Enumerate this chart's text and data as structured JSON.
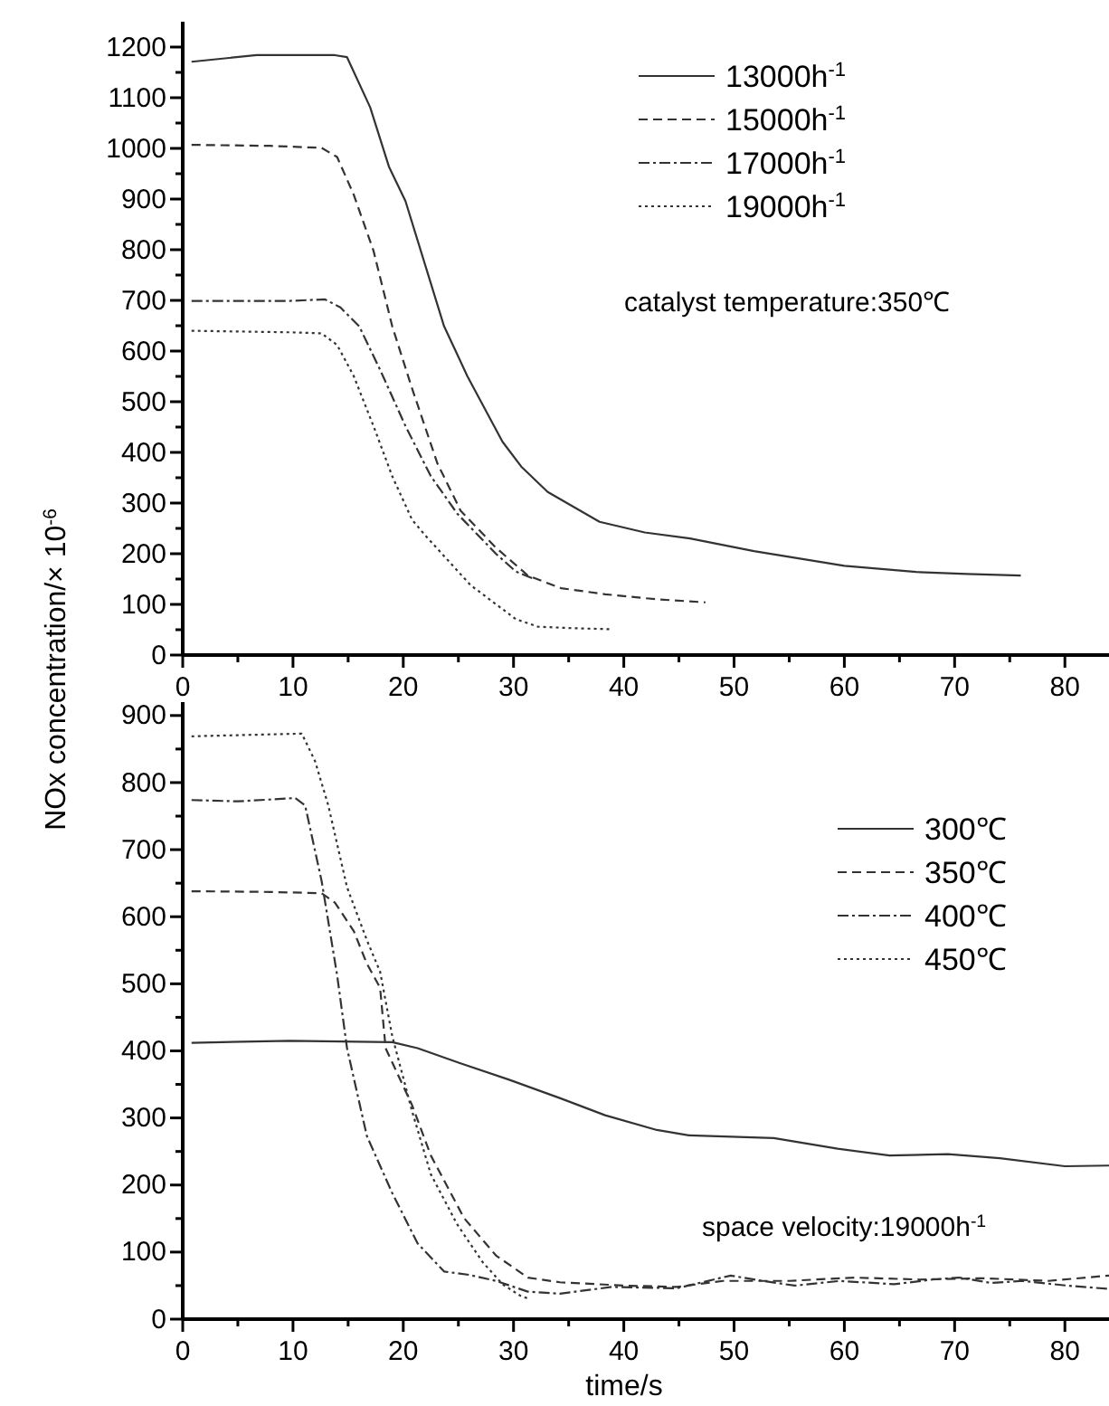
{
  "chart_data": [
    {
      "type": "line",
      "ylabel": "NOx concentration/× 10$^{-6}$",
      "legend": "top right",
      "grid": false,
      "marker": "none",
      "xlim": [
        0,
        84
      ],
      "xticks": [
        0,
        {
          "value": 5,
          "label": null
        },
        10,
        {
          "value": 15,
          "label": null
        },
        20,
        {
          "value": 25,
          "label": null
        },
        30,
        {
          "value": 35,
          "label": null
        },
        40,
        {
          "value": 45,
          "label": null
        },
        50,
        {
          "value": 55,
          "label": null
        },
        60,
        {
          "value": 65,
          "label": null
        },
        70,
        {
          "value": 75,
          "label": null
        },
        80
      ],
      "ylim": [
        0,
        1250
      ],
      "yticks": [
        0,
        {
          "value": 50,
          "label": null
        },
        100,
        {
          "value": 150,
          "label": null
        },
        200,
        {
          "value": 250,
          "label": null
        },
        300,
        {
          "value": 350,
          "label": null
        },
        400,
        {
          "value": 450,
          "label": null
        },
        500,
        {
          "value": 550,
          "label": null
        },
        600,
        {
          "value": 650,
          "label": null
        },
        700,
        {
          "value": 750,
          "label": null
        },
        800,
        {
          "value": 850,
          "label": null
        },
        900,
        {
          "value": 950,
          "label": null
        },
        1000,
        {
          "value": 1050,
          "label": null
        },
        1100,
        {
          "value": 1150,
          "label": null
        },
        1200
      ],
      "annotations": [
        "catalyst temperature:350℃"
      ],
      "series": [
        {
          "name": "13000h$^{-1}$",
          "color": "#333333",
          "line_style": "solid",
          "x": [
            0.8,
            6.7,
            13.8,
            14.9,
            17,
            18.7,
            20.2,
            23.7,
            25.8,
            29,
            30.7,
            33.1,
            37.8,
            41.9,
            46,
            51.8,
            60,
            66.5,
            71.1,
            76
          ],
          "values": [
            1171,
            1184,
            1184,
            1180,
            1081,
            964,
            896,
            649,
            551,
            421,
            372,
            322,
            263,
            242,
            230,
            205,
            176,
            164,
            160,
            157
          ]
        },
        {
          "name": "15000h$^{-1}$",
          "color": "#333333",
          "line_style": "dashed",
          "x": [
            0.8,
            7.9,
            12.6,
            14,
            15.5,
            17.3,
            19,
            20.8,
            23.1,
            25.2,
            28.4,
            31.3,
            34.3,
            38.3,
            43,
            47.4
          ],
          "values": [
            1007,
            1005,
            1001,
            983,
            909,
            798,
            649,
            526,
            378,
            285,
            212,
            157,
            132,
            120,
            110,
            104
          ]
        },
        {
          "name": "17000h$^{-1}$",
          "color": "#333333",
          "line_style": "dashdot",
          "x": [
            0.8,
            9.7,
            12.9,
            14.3,
            16,
            17.9,
            20.2,
            22.5,
            24.9,
            28.4,
            30.2,
            31.9
          ],
          "values": [
            699,
            699,
            702,
            686,
            649,
            563,
            452,
            353,
            279,
            200,
            165,
            150
          ]
        },
        {
          "name": "19000h$^{-1}$",
          "color": "#333333",
          "line_style": "dotted",
          "x": [
            0.8,
            9.7,
            12.6,
            14,
            15.5,
            17.3,
            19,
            20.8,
            22,
            26.1,
            30.2,
            32.2,
            35.4,
            38.8
          ],
          "values": [
            640,
            637,
            635,
            612,
            551,
            452,
            353,
            267,
            236,
            138,
            71,
            56,
            53,
            51
          ]
        }
      ]
    },
    {
      "type": "line",
      "xlabel": "time/s",
      "legend": "right",
      "grid": false,
      "marker": "none",
      "xlim": [
        0,
        84
      ],
      "xticks": [
        0,
        {
          "value": 5,
          "label": null
        },
        10,
        {
          "value": 15,
          "label": null
        },
        20,
        {
          "value": 25,
          "label": null
        },
        30,
        {
          "value": 35,
          "label": null
        },
        40,
        {
          "value": 45,
          "label": null
        },
        50,
        {
          "value": 55,
          "label": null
        },
        60,
        {
          "value": 65,
          "label": null
        },
        70,
        {
          "value": 75,
          "label": null
        },
        80
      ],
      "ylim": [
        0,
        920
      ],
      "yticks": [
        0,
        {
          "value": 50,
          "label": null
        },
        100,
        {
          "value": 150,
          "label": null
        },
        200,
        {
          "value": 250,
          "label": null
        },
        300,
        {
          "value": 350,
          "label": null
        },
        400,
        {
          "value": 450,
          "label": null
        },
        500,
        {
          "value": 550,
          "label": null
        },
        600,
        {
          "value": 650,
          "label": null
        },
        700,
        {
          "value": 750,
          "label": null
        },
        800,
        {
          "value": 850,
          "label": null
        },
        900
      ],
      "annotations": [
        "space velocity:19000h$^{-1}$"
      ],
      "series": [
        {
          "name": "300℃",
          "color": "#333333",
          "line_style": "solid",
          "x": [
            0.8,
            9.7,
            19,
            21.3,
            24.9,
            29.6,
            34.3,
            38.3,
            43,
            45.9,
            53.6,
            59.4,
            64.1,
            69.4,
            74.1,
            80,
            84
          ],
          "values": [
            412,
            415,
            413,
            404,
            383,
            357,
            329,
            304,
            282,
            274,
            270,
            254,
            244,
            246,
            240,
            228,
            229
          ]
        },
        {
          "name": "350℃",
          "color": "#333333",
          "line_style": "dashed",
          "x": [
            0.8,
            7.9,
            12.6,
            13.8,
            15.5,
            16.7,
            17.9,
            18.4,
            20.8,
            22.5,
            25.5,
            28.4,
            31.3,
            34.2,
            40.1,
            44.8,
            49,
            55,
            60.9,
            66.8,
            72.6,
            78.5,
            84
          ],
          "values": [
            638,
            637,
            635,
            621,
            579,
            530,
            494,
            404,
            319,
            244,
            151,
            95,
            62,
            55,
            50,
            48,
            57,
            57,
            62,
            59,
            61,
            57,
            65
          ]
        },
        {
          "name": "400℃",
          "color": "#333333",
          "line_style": "dashdot",
          "x": [
            0.8,
            5,
            10.2,
            11.1,
            12.6,
            14,
            14.9,
            16.7,
            19,
            21.3,
            23.7,
            26,
            28.4,
            31.3,
            34.2,
            38.9,
            44.8,
            49.7,
            52.6,
            55.5,
            59.6,
            64.5,
            68,
            70.4,
            73.3,
            76.2,
            80.2,
            84
          ],
          "values": [
            774,
            772,
            777,
            766,
            653,
            513,
            404,
            273,
            188,
            113,
            71,
            66,
            57,
            41,
            38,
            48,
            46,
            65,
            57,
            50,
            57,
            52,
            59,
            62,
            54,
            57,
            50,
            45
          ]
        },
        {
          "name": "450℃",
          "color": "#333333",
          "line_style": "dotted",
          "x": [
            0.8,
            10.8,
            12,
            13.2,
            14.9,
            16.7,
            17.9,
            19,
            20.8,
            22.5,
            24.9,
            27.2,
            29,
            30.7,
            31.5
          ],
          "values": [
            869,
            873,
            832,
            766,
            644,
            565,
            518,
            422,
            310,
            216,
            141,
            85,
            52,
            34,
            30
          ]
        }
      ]
    }
  ]
}
